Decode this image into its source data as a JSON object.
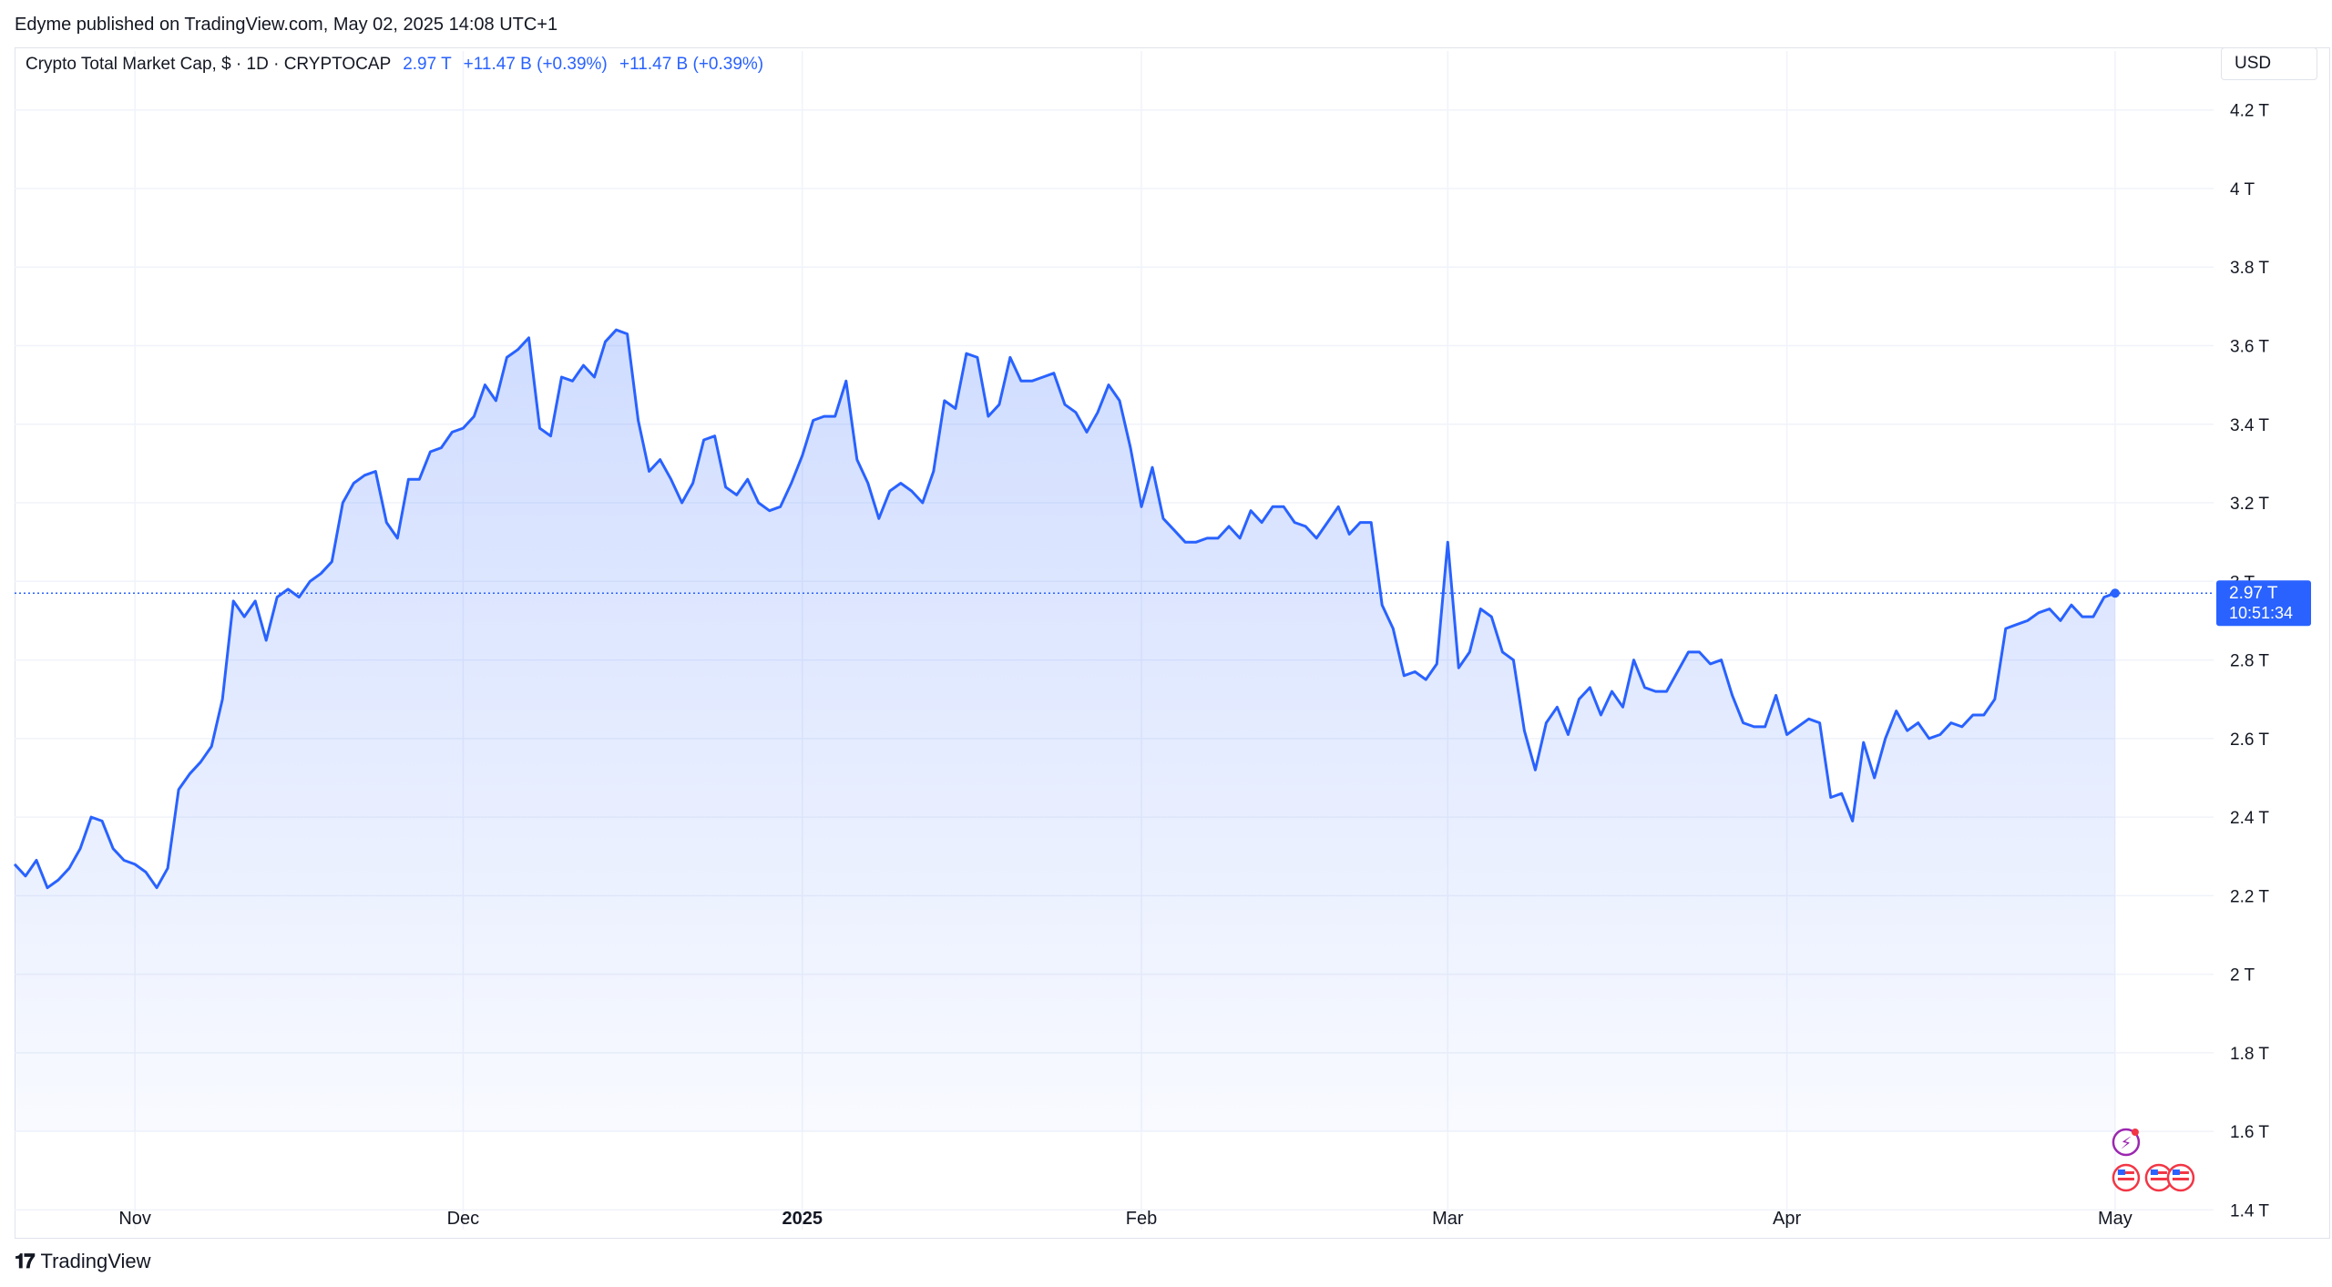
{
  "header": {
    "published_by": "Edyme published on TradingView.com, May 02, 2025 14:08 UTC+1"
  },
  "legend": {
    "symbol": "Crypto Total Market Cap, $ · 1D · CRYPTOCAP",
    "price": "2.97 T",
    "change1": "+11.47 B (+0.39%)",
    "change2": "+11.47 B (+0.39%)"
  },
  "currency": "USD",
  "last_price": {
    "label": "2.97 T",
    "countdown": "10:51:34"
  },
  "footer": {
    "brand": "TradingView",
    "logo_icon": "tradingview-logo-icon"
  },
  "colors": {
    "line": "#2962ff",
    "fill": "#dbe5fe",
    "grid": "#f0f3fa",
    "axis_text": "#131722"
  },
  "chart_data": {
    "type": "area",
    "title": "Crypto Total Market Cap, $ · 1D · CRYPTOCAP",
    "ylabel": "",
    "xlabel": "",
    "ylim": [
      1.35,
      4.35
    ],
    "y_unit": "T",
    "y_ticks": [
      1.4,
      1.6,
      1.8,
      2.0,
      2.2,
      2.4,
      2.6,
      2.8,
      3.0,
      3.2,
      3.4,
      3.6,
      3.8,
      4.0,
      4.2
    ],
    "y_tick_labels": [
      "1.4 T",
      "1.6 T",
      "1.8 T",
      "2 T",
      "2.2 T",
      "2.4 T",
      "2.6 T",
      "2.8 T",
      "3 T",
      "3.2 T",
      "3.4 T",
      "3.6 T",
      "3.8 T",
      "4 T",
      "4.2 T"
    ],
    "x_ticks": [
      {
        "label": "Nov",
        "date": "2024-11-01",
        "bold": false
      },
      {
        "label": "Dec",
        "date": "2024-12-01",
        "bold": false
      },
      {
        "label": "2025",
        "date": "2025-01-01",
        "bold": true
      },
      {
        "label": "Feb",
        "date": "2025-02-01",
        "bold": false
      },
      {
        "label": "Mar",
        "date": "2025-03-01",
        "bold": false
      },
      {
        "label": "Apr",
        "date": "2025-04-01",
        "bold": false
      },
      {
        "label": "May",
        "date": "2025-05-01",
        "bold": false
      }
    ],
    "x_range": [
      "2024-10-21",
      "2025-05-10"
    ],
    "grid": true,
    "series": [
      {
        "start_date": "2024-10-21",
        "values": [
          2.28,
          2.25,
          2.29,
          2.22,
          2.24,
          2.27,
          2.32,
          2.4,
          2.39,
          2.32,
          2.29,
          2.28,
          2.26,
          2.22,
          2.27,
          2.47,
          2.51,
          2.54,
          2.58,
          2.7,
          2.95,
          2.91,
          2.95,
          2.85,
          2.96,
          2.98,
          2.96,
          3.0,
          3.02,
          3.05,
          3.2,
          3.25,
          3.27,
          3.28,
          3.15,
          3.11,
          3.26,
          3.26,
          3.33,
          3.34,
          3.38,
          3.39,
          3.42,
          3.5,
          3.46,
          3.57,
          3.59,
          3.62,
          3.39,
          3.37,
          3.52,
          3.51,
          3.55,
          3.52,
          3.61,
          3.64,
          3.63,
          3.41,
          3.28,
          3.31,
          3.26,
          3.2,
          3.25,
          3.36,
          3.37,
          3.24,
          3.22,
          3.26,
          3.2,
          3.18,
          3.19,
          3.25,
          3.32,
          3.41,
          3.42,
          3.42,
          3.51,
          3.31,
          3.25,
          3.16,
          3.23,
          3.25,
          3.23,
          3.2,
          3.28,
          3.46,
          3.44,
          3.58,
          3.57,
          3.42,
          3.45,
          3.57,
          3.51,
          3.51,
          3.52,
          3.53,
          3.45,
          3.43,
          3.38,
          3.43,
          3.5,
          3.46,
          3.34,
          3.19,
          3.29,
          3.16,
          3.13,
          3.1,
          3.1,
          3.11,
          3.11,
          3.14,
          3.11,
          3.18,
          3.15,
          3.19,
          3.19,
          3.15,
          3.14,
          3.11,
          3.15,
          3.19,
          3.12,
          3.15,
          3.15,
          2.94,
          2.88,
          2.76,
          2.77,
          2.75,
          2.79,
          3.1,
          2.78,
          2.82,
          2.93,
          2.91,
          2.82,
          2.8,
          2.62,
          2.52,
          2.64,
          2.68,
          2.61,
          2.7,
          2.73,
          2.66,
          2.72,
          2.68,
          2.8,
          2.73,
          2.72,
          2.72,
          2.77,
          2.82,
          2.82,
          2.79,
          2.8,
          2.71,
          2.64,
          2.63,
          2.63,
          2.71,
          2.61,
          2.63,
          2.65,
          2.64,
          2.45,
          2.46,
          2.39,
          2.59,
          2.5,
          2.6,
          2.67,
          2.62,
          2.64,
          2.6,
          2.61,
          2.64,
          2.63,
          2.66,
          2.66,
          2.7,
          2.88,
          2.89,
          2.9,
          2.92,
          2.93,
          2.9,
          2.94,
          2.91,
          2.91,
          2.96,
          2.97
        ]
      }
    ]
  }
}
